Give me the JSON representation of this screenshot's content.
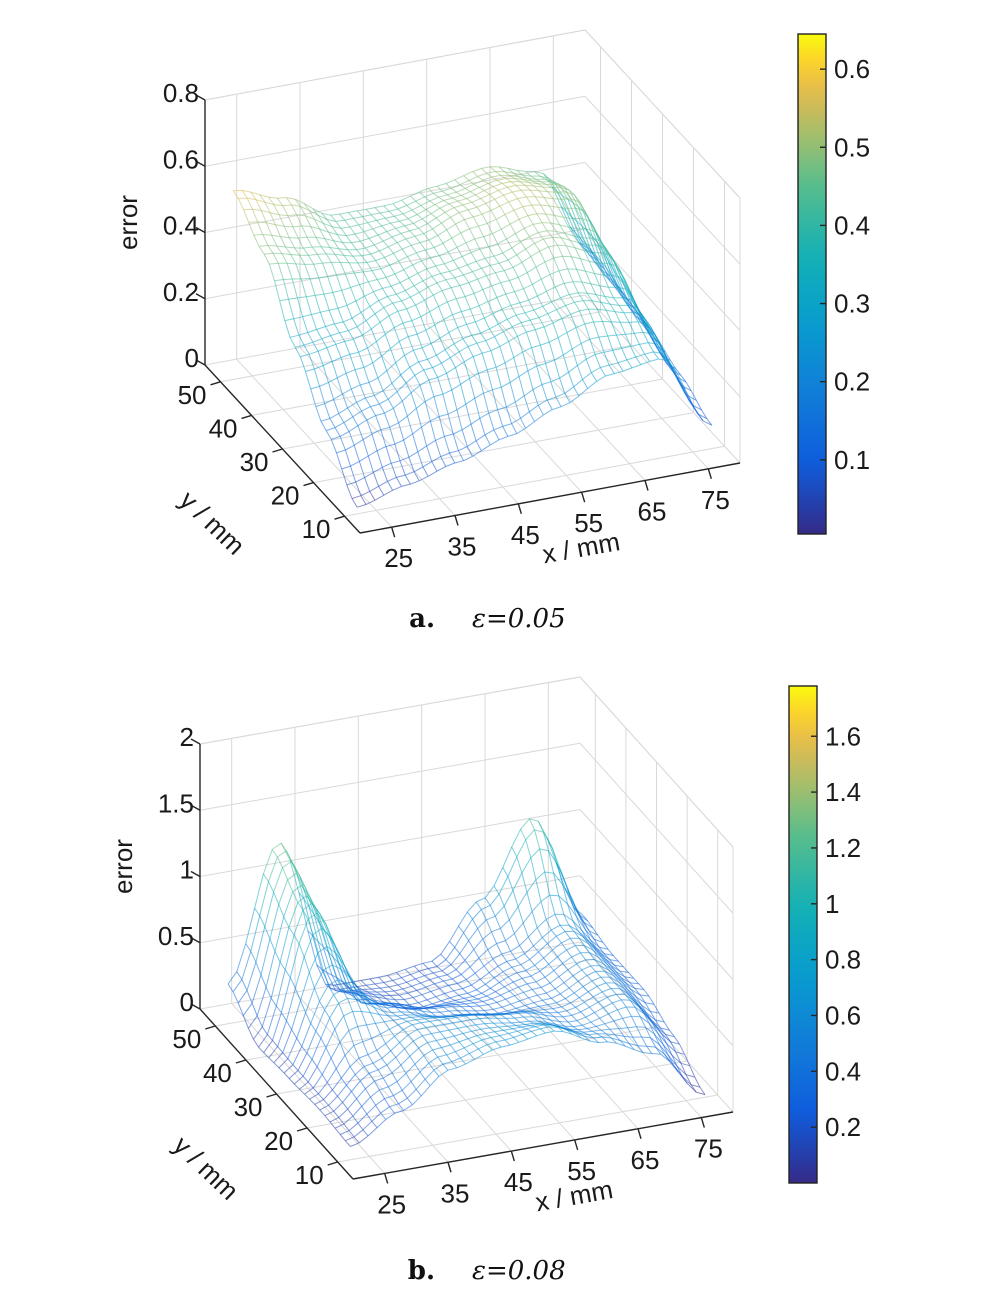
{
  "chart_data": [
    {
      "type": "surface3d",
      "panel_label": "a.",
      "caption_value": "ε=0.05",
      "xlabel": "x / mm",
      "ylabel": "y / mm",
      "zlabel": "error",
      "xticks": [
        "25",
        "35",
        "45",
        "55",
        "65",
        "75"
      ],
      "yticks": [
        "10",
        "20",
        "30",
        "40",
        "50"
      ],
      "zticks": [
        "0",
        "0.2",
        "0.4",
        "0.6",
        "0.8"
      ],
      "xlim": [
        20,
        80
      ],
      "ylim": [
        5,
        55
      ],
      "zlim": [
        0,
        0.8
      ],
      "colorbar_ticks": [
        "0.1",
        "0.2",
        "0.3",
        "0.4",
        "0.5",
        "0.6"
      ],
      "clim": [
        0.005,
        0.645
      ],
      "colormap": "parula",
      "grid": true,
      "surface_x": [
        22,
        30,
        38,
        46,
        54,
        62,
        70,
        78
      ],
      "surface_y": [
        10,
        20,
        30,
        40,
        50
      ],
      "surface_z": [
        [
          0.02,
          0.06,
          0.1,
          0.15,
          0.21,
          0.28,
          0.3,
          0.07
        ],
        [
          0.15,
          0.2,
          0.28,
          0.33,
          0.37,
          0.4,
          0.36,
          0.12
        ],
        [
          0.3,
          0.32,
          0.38,
          0.42,
          0.44,
          0.49,
          0.44,
          0.16
        ],
        [
          0.48,
          0.45,
          0.42,
          0.45,
          0.5,
          0.53,
          0.5,
          0.18
        ],
        [
          0.57,
          0.52,
          0.44,
          0.44,
          0.47,
          0.5,
          0.46,
          0.2
        ]
      ]
    },
    {
      "type": "surface3d",
      "panel_label": "b.",
      "caption_value": "ε=0.08",
      "xlabel": "x / mm",
      "ylabel": "y / mm",
      "zlabel": "error",
      "xticks": [
        "25",
        "35",
        "45",
        "55",
        "65",
        "75"
      ],
      "yticks": [
        "10",
        "20",
        "30",
        "40",
        "50"
      ],
      "zticks": [
        "0",
        "0.5",
        "1",
        "1.5",
        "2"
      ],
      "xlim": [
        20,
        80
      ],
      "ylim": [
        5,
        55
      ],
      "zlim": [
        0,
        2
      ],
      "colorbar_ticks": [
        "0.2",
        "0.4",
        "0.6",
        "0.8",
        "1",
        "1.2",
        "1.4",
        "1.6"
      ],
      "clim": [
        0.0,
        1.78
      ],
      "colormap": "parula",
      "grid": true,
      "surface_x": [
        22,
        30,
        38,
        46,
        54,
        62,
        70,
        78
      ],
      "surface_y": [
        10,
        20,
        30,
        40,
        50
      ],
      "surface_z": [
        [
          0.1,
          0.3,
          0.55,
          0.65,
          0.7,
          0.55,
          0.4,
          0.02
        ],
        [
          0.12,
          0.4,
          0.6,
          0.6,
          0.55,
          0.45,
          0.55,
          0.2
        ],
        [
          0.1,
          0.7,
          0.5,
          0.4,
          0.35,
          0.4,
          0.55,
          0.3
        ],
        [
          0.08,
          1.1,
          0.3,
          0.2,
          0.25,
          0.4,
          0.6,
          0.3
        ],
        [
          0.3,
          1.3,
          0.15,
          0.15,
          0.2,
          0.6,
          1.15,
          0.35
        ]
      ]
    }
  ]
}
